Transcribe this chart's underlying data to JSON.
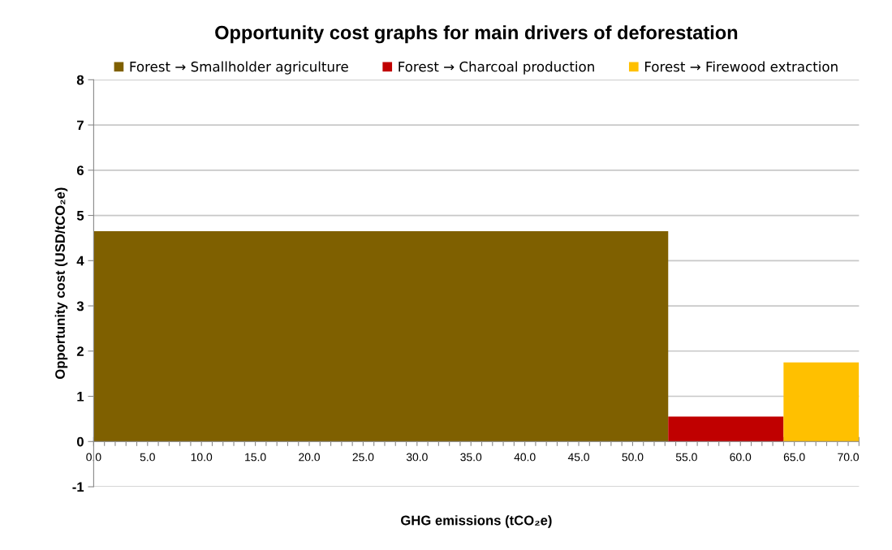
{
  "chart_data": {
    "type": "histogram",
    "title": "Opportunity cost graphs for main drivers of deforestation",
    "xlabel": "GHG emissions (tCO₂e)",
    "ylabel": "Opportunity cost (USD/tCO₂e)",
    "bins": [
      0,
      53.3,
      64.0,
      71.0
    ],
    "series": [
      {
        "name": "Forest → Smallholder agriculture",
        "color": "#7f6000",
        "values": [
          4.65,
          null,
          null
        ]
      },
      {
        "name": "Forest → Charcoal production",
        "color": "#c00000",
        "values": [
          null,
          0.55,
          null
        ]
      },
      {
        "name": "Forest → Firewood extraction",
        "color": "#ffc000",
        "values": [
          null,
          null,
          1.75
        ]
      }
    ],
    "xlim": [
      0,
      71.0
    ],
    "ylim": [
      -1,
      8
    ],
    "xticks": [
      {
        "value": 0,
        "label": "0.0"
      },
      {
        "value": 1,
        "label": null
      },
      {
        "value": 2,
        "label": null
      },
      {
        "value": 3,
        "label": null
      },
      {
        "value": 4,
        "label": null
      },
      {
        "value": 5,
        "label": "5.0"
      },
      {
        "value": 6,
        "label": null
      },
      {
        "value": 7,
        "label": null
      },
      {
        "value": 8,
        "label": null
      },
      {
        "value": 9,
        "label": null
      },
      {
        "value": 10,
        "label": "10.0"
      },
      {
        "value": 11,
        "label": null
      },
      {
        "value": 12,
        "label": null
      },
      {
        "value": 13,
        "label": null
      },
      {
        "value": 14,
        "label": null
      },
      {
        "value": 15,
        "label": "15.0"
      },
      {
        "value": 16,
        "label": null
      },
      {
        "value": 17,
        "label": null
      },
      {
        "value": 18,
        "label": null
      },
      {
        "value": 19,
        "label": null
      },
      {
        "value": 20,
        "label": "20.0"
      },
      {
        "value": 21,
        "label": null
      },
      {
        "value": 22,
        "label": null
      },
      {
        "value": 23,
        "label": null
      },
      {
        "value": 24,
        "label": null
      },
      {
        "value": 25,
        "label": "25.0"
      },
      {
        "value": 26,
        "label": null
      },
      {
        "value": 27,
        "label": null
      },
      {
        "value": 28,
        "label": null
      },
      {
        "value": 29,
        "label": null
      },
      {
        "value": 30,
        "label": "30.0"
      },
      {
        "value": 31,
        "label": null
      },
      {
        "value": 32,
        "label": null
      },
      {
        "value": 33,
        "label": null
      },
      {
        "value": 34,
        "label": null
      },
      {
        "value": 35,
        "label": "35.0"
      },
      {
        "value": 36,
        "label": null
      },
      {
        "value": 37,
        "label": null
      },
      {
        "value": 38,
        "label": null
      },
      {
        "value": 39,
        "label": null
      },
      {
        "value": 40,
        "label": "40.0"
      },
      {
        "value": 41,
        "label": null
      },
      {
        "value": 42,
        "label": null
      },
      {
        "value": 43,
        "label": null
      },
      {
        "value": 44,
        "label": null
      },
      {
        "value": 45,
        "label": "45.0"
      },
      {
        "value": 46,
        "label": null
      },
      {
        "value": 47,
        "label": null
      },
      {
        "value": 48,
        "label": null
      },
      {
        "value": 49,
        "label": null
      },
      {
        "value": 50,
        "label": "50.0"
      },
      {
        "value": 51,
        "label": null
      },
      {
        "value": 52,
        "label": null
      },
      {
        "value": 53,
        "label": null
      },
      {
        "value": 54,
        "label": null
      },
      {
        "value": 55,
        "label": "55.0"
      },
      {
        "value": 56,
        "label": null
      },
      {
        "value": 57,
        "label": null
      },
      {
        "value": 58,
        "label": null
      },
      {
        "value": 59,
        "label": null
      },
      {
        "value": 60,
        "label": "60.0"
      },
      {
        "value": 61,
        "label": null
      },
      {
        "value": 62,
        "label": null
      },
      {
        "value": 63,
        "label": null
      },
      {
        "value": 64,
        "label": null
      },
      {
        "value": 65,
        "label": "65.0"
      },
      {
        "value": 66,
        "label": null
      },
      {
        "value": 67,
        "label": null
      },
      {
        "value": 68,
        "label": null
      },
      {
        "value": 69,
        "label": null
      },
      {
        "value": 70,
        "label": "70.0"
      },
      {
        "value": 71,
        "label": null
      }
    ],
    "yticks": [
      -1,
      0,
      1,
      2,
      3,
      4,
      5,
      6,
      7,
      8
    ],
    "grid": "y",
    "legend": "top"
  }
}
